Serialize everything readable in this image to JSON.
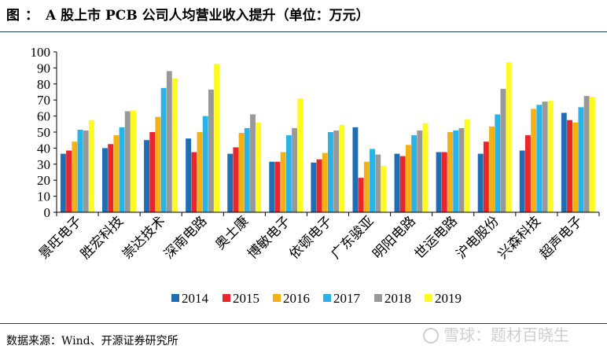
{
  "header": {
    "prefix": "图",
    "colon": "：",
    "title": "A 股上市 PCB 公司人均营业收入提升（单位：万元）"
  },
  "footer": {
    "source": "数据来源：Wind、开源证券研究所",
    "watermark": "雪球：题材百晓生"
  },
  "chart_data": {
    "type": "bar",
    "title": "A 股上市 PCB 公司人均营业收入提升（单位：万元）",
    "ylim": [
      0,
      100
    ],
    "yticks": [
      0,
      10,
      20,
      30,
      40,
      50,
      60,
      70,
      80,
      90,
      100
    ],
    "grid": false,
    "legend_position": "bottom",
    "categories": [
      "景旺电子",
      "胜宏科技",
      "崇达技术",
      "深南电路",
      "奥士康",
      "博敏电子",
      "依顿电子",
      "广东骏亚",
      "明阳电路",
      "世运电路",
      "沪电股份",
      "兴森科技",
      "超声电子"
    ],
    "series": [
      {
        "name": "2014",
        "color": "#1f6eb4",
        "values": [
          36.5,
          40,
          45,
          46,
          36.5,
          31.5,
          31,
          53,
          36.5,
          37.5,
          36.5,
          38.5,
          62
        ]
      },
      {
        "name": "2015",
        "color": "#e8262b",
        "values": [
          38.5,
          42.5,
          50,
          37.5,
          40.5,
          31.5,
          33,
          21.5,
          35,
          37.5,
          44,
          48,
          57.5
        ]
      },
      {
        "name": "2016",
        "color": "#f5b014",
        "values": [
          44,
          48,
          59.5,
          50,
          49.5,
          37.5,
          37,
          31.5,
          42,
          50,
          53.5,
          64.5,
          56
        ]
      },
      {
        "name": "2017",
        "color": "#2ab3e6",
        "values": [
          51.5,
          53,
          77.5,
          60,
          52.5,
          48,
          50,
          39.5,
          48,
          51,
          61,
          67,
          65.5
        ]
      },
      {
        "name": "2018",
        "color": "#999999",
        "values": [
          51,
          63,
          88,
          76.5,
          61,
          52.5,
          51,
          36,
          51,
          52.5,
          77,
          69,
          72.5
        ]
      },
      {
        "name": "2019",
        "color": "#fffb1f",
        "values": [
          57.5,
          63.5,
          83.5,
          92.5,
          56,
          71,
          54.5,
          29,
          55.5,
          58,
          93.5,
          69.5,
          72
        ]
      }
    ]
  }
}
